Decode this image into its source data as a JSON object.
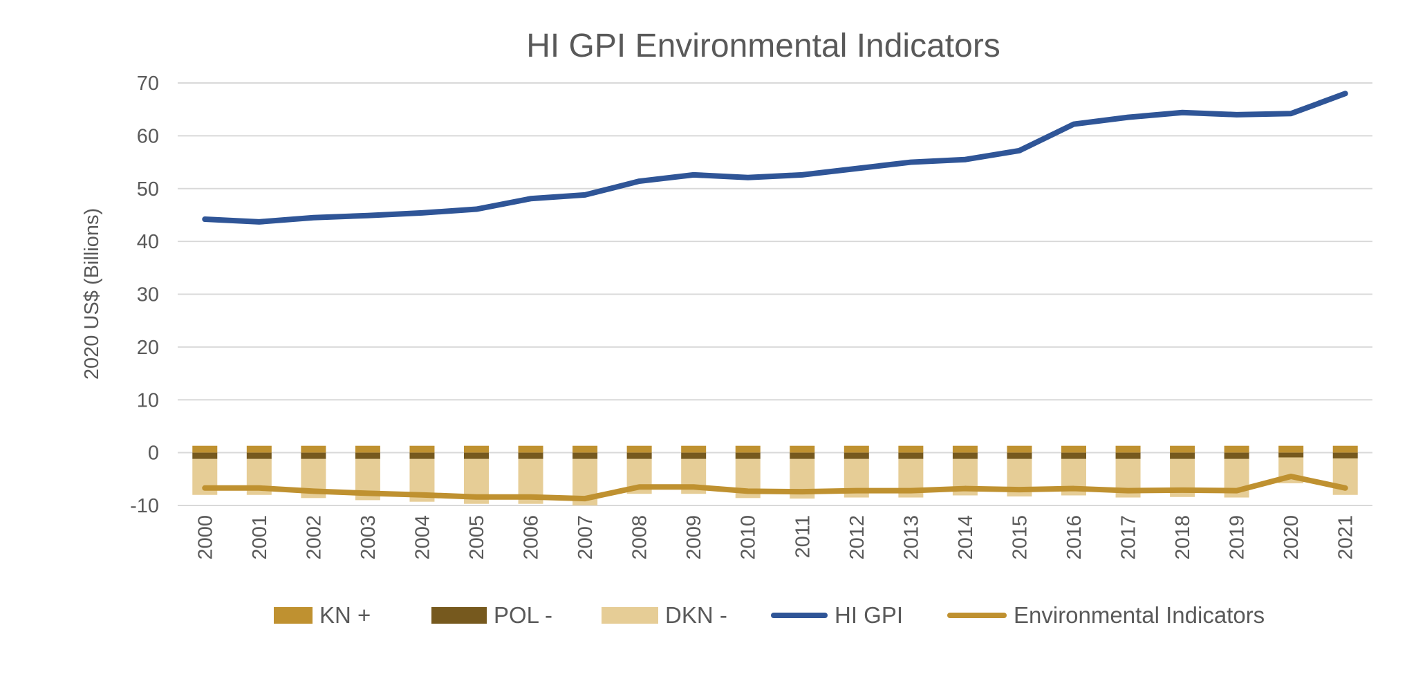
{
  "chart_data": {
    "type": "bar+line",
    "title": "HI GPI Environmental Indicators",
    "xlabel": "",
    "ylabel": "2020 US$ (Billions)",
    "ylim": [
      -10,
      70
    ],
    "yticks": [
      -10,
      0,
      10,
      20,
      30,
      40,
      50,
      60,
      70
    ],
    "grid": true,
    "legend": "bottom",
    "categories": [
      "2000",
      "2001",
      "2002",
      "2003",
      "2004",
      "2005",
      "2006",
      "2007",
      "2008",
      "2009",
      "2010",
      "2011",
      "2012",
      "2013",
      "2014",
      "2015",
      "2016",
      "2017",
      "2018",
      "2019",
      "2020",
      "2021"
    ],
    "series": [
      {
        "name": "KN +",
        "kind": "bar",
        "color": "#BF9130",
        "values": [
          1.3,
          1.3,
          1.3,
          1.3,
          1.3,
          1.3,
          1.3,
          1.3,
          1.3,
          1.3,
          1.3,
          1.3,
          1.3,
          1.3,
          1.3,
          1.3,
          1.3,
          1.3,
          1.3,
          1.3,
          1.3,
          1.3
        ]
      },
      {
        "name": "POL -",
        "kind": "bar",
        "color": "#76591E",
        "values": [
          -1.2,
          -1.2,
          -1.2,
          -1.2,
          -1.2,
          -1.2,
          -1.2,
          -1.2,
          -1.2,
          -1.2,
          -1.2,
          -1.2,
          -1.2,
          -1.2,
          -1.2,
          -1.2,
          -1.2,
          -1.2,
          -1.2,
          -1.2,
          -0.9,
          -1.1
        ]
      },
      {
        "name": "DKN -",
        "kind": "bar",
        "color": "#E6CD96",
        "values": [
          -6.8,
          -6.8,
          -7.4,
          -7.8,
          -8.1,
          -8.5,
          -8.5,
          -8.8,
          -6.6,
          -6.6,
          -7.4,
          -7.5,
          -7.3,
          -7.3,
          -6.9,
          -7.1,
          -6.9,
          -7.3,
          -7.2,
          -7.3,
          -4.9,
          -6.9
        ]
      },
      {
        "name": "HI GPI",
        "kind": "line",
        "color": "#2F5597",
        "values": [
          44.2,
          43.7,
          44.5,
          44.9,
          45.4,
          46.1,
          48.1,
          48.8,
          51.4,
          52.6,
          52.1,
          52.6,
          53.8,
          55.0,
          55.5,
          57.2,
          62.2,
          63.5,
          64.4,
          64.0,
          64.2,
          68.0
        ]
      },
      {
        "name": "Environmental Indicators",
        "kind": "line",
        "color": "#BF9130",
        "values": [
          -6.7,
          -6.7,
          -7.3,
          -7.7,
          -8.0,
          -8.4,
          -8.4,
          -8.7,
          -6.5,
          -6.5,
          -7.3,
          -7.4,
          -7.2,
          -7.2,
          -6.8,
          -7.0,
          -6.8,
          -7.2,
          -7.1,
          -7.2,
          -4.5,
          -6.7
        ]
      }
    ]
  }
}
